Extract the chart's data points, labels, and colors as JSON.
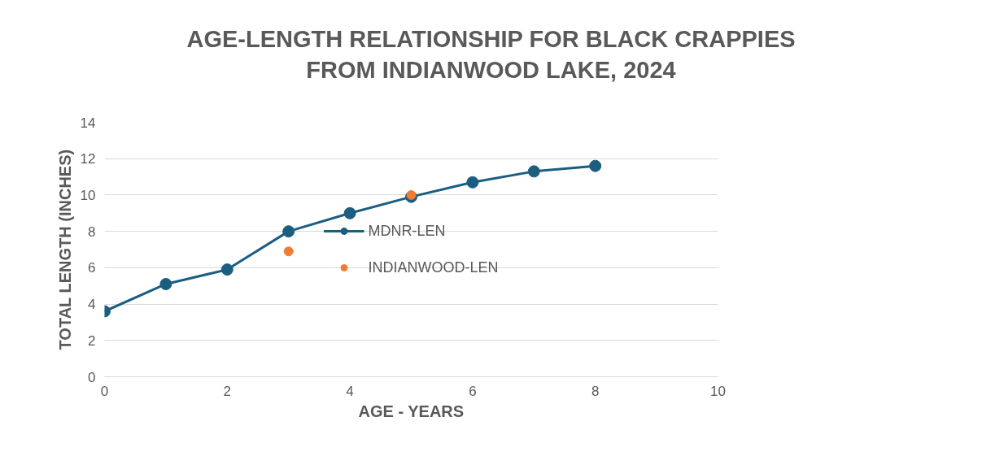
{
  "chart_data": {
    "type": "line",
    "title": "AGE-LENGTH RELATIONSHIP FOR BLACK CRAPPIES FROM INDIANWOOD LAKE, 2024",
    "xlabel": "AGE - YEARS",
    "ylabel": "TOTAL LENGTH (INCHES)",
    "series": [
      {
        "name": "MDNR-LEN",
        "color": "#1b5e80",
        "x": [
          0,
          1,
          2,
          3,
          4,
          5,
          6,
          7,
          8
        ],
        "values": [
          3.6,
          5.1,
          5.9,
          8.0,
          9.0,
          9.9,
          10.7,
          11.3,
          11.6
        ]
      },
      {
        "name": "INDIANWOOD-LEN",
        "color": "#f07b35",
        "type": "scatter",
        "x": [
          3,
          5
        ],
        "values": [
          6.9,
          10.0
        ]
      }
    ],
    "xlim": [
      0,
      10
    ],
    "xticks": [
      0,
      2,
      4,
      6,
      8,
      10
    ],
    "ylim": [
      0,
      14
    ],
    "yticks": [
      0,
      2,
      4,
      6,
      8,
      10,
      12,
      14
    ],
    "grid": "y",
    "legend": "center",
    "marker": "circle"
  }
}
